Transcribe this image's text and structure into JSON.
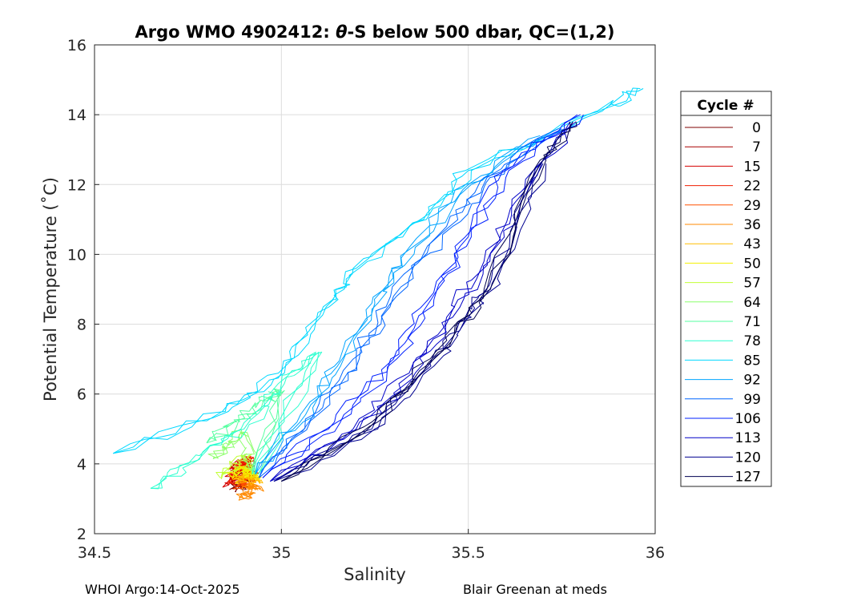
{
  "chart_data": {
    "type": "line",
    "title": "Argo WMO 4902412: θ-S below 500 dbar,  QC=(1,2)",
    "title_parts": {
      "prefix": "Argo WMO 4902412: ",
      "theta": "θ",
      "suffix": "-S below 500 dbar,  QC=(1,2)"
    },
    "xlabel": "Salinity",
    "ylabel": "Potential Temperature (˚C)",
    "xlim": [
      34.5,
      36
    ],
    "ylim": [
      2,
      16
    ],
    "xticks": [
      34.5,
      35,
      35.5,
      36
    ],
    "xtick_labels": [
      "34.5",
      "35",
      "35.5",
      "36"
    ],
    "yticks": [
      2,
      4,
      6,
      8,
      10,
      12,
      14,
      16
    ],
    "ytick_labels": [
      "2",
      "4",
      "6",
      "8",
      "10",
      "12",
      "14",
      "16"
    ],
    "grid": true,
    "legend": {
      "title": "Cycle #",
      "placement": "right",
      "entries": [
        {
          "label": "0",
          "color": "#7f0000"
        },
        {
          "label": "7",
          "color": "#a80000"
        },
        {
          "label": "15",
          "color": "#d40000"
        },
        {
          "label": "22",
          "color": "#f01e00"
        },
        {
          "label": "29",
          "color": "#ff5000"
        },
        {
          "label": "36",
          "color": "#ff8a00"
        },
        {
          "label": "43",
          "color": "#ffbd00"
        },
        {
          "label": "50",
          "color": "#f2f000"
        },
        {
          "label": "57",
          "color": "#c2ff36"
        },
        {
          "label": "64",
          "color": "#8cff6b"
        },
        {
          "label": "71",
          "color": "#56ffa0"
        },
        {
          "label": "78",
          "color": "#2effd0"
        },
        {
          "label": "85",
          "color": "#00d8ff"
        },
        {
          "label": "92",
          "color": "#00a4ff"
        },
        {
          "label": "99",
          "color": "#0066ff"
        },
        {
          "label": "106",
          "color": "#0020ff"
        },
        {
          "label": "113",
          "color": "#0000c8"
        },
        {
          "label": "120",
          "color": "#000090"
        },
        {
          "label": "127",
          "color": "#000050"
        }
      ]
    },
    "series": [
      {
        "name": "0",
        "x": [
          34.88,
          34.89,
          34.9,
          34.91,
          34.92
        ],
        "y": [
          3.3,
          3.4,
          3.5,
          3.55,
          3.6
        ]
      },
      {
        "name": "7",
        "x": [
          34.87,
          34.88,
          34.9,
          34.91,
          34.92
        ],
        "y": [
          3.5,
          3.7,
          3.9,
          4.0,
          3.7
        ]
      },
      {
        "name": "15",
        "x": [
          34.86,
          34.88,
          34.89,
          34.9,
          34.92
        ],
        "y": [
          3.4,
          3.8,
          4.0,
          4.1,
          3.6
        ]
      },
      {
        "name": "22",
        "x": [
          34.87,
          34.88,
          34.9,
          34.91,
          34.92
        ],
        "y": [
          3.45,
          3.75,
          4.05,
          4.15,
          3.65
        ]
      },
      {
        "name": "29",
        "x": [
          34.89,
          34.9,
          34.91,
          34.92
        ],
        "y": [
          3.3,
          3.5,
          3.7,
          3.5
        ]
      },
      {
        "name": "36",
        "x": [
          34.9,
          34.91,
          34.92,
          34.93
        ],
        "y": [
          3.0,
          3.2,
          3.4,
          3.3
        ]
      },
      {
        "name": "43",
        "x": [
          34.88,
          34.9,
          34.92,
          34.93
        ],
        "y": [
          3.5,
          3.7,
          3.6,
          3.5
        ]
      },
      {
        "name": "50",
        "x": [
          34.87,
          34.89,
          34.91,
          34.93
        ],
        "y": [
          3.6,
          3.9,
          3.8,
          3.6
        ]
      },
      {
        "name": "57",
        "x": [
          34.84,
          34.87,
          34.9,
          34.93
        ],
        "y": [
          3.6,
          4.0,
          4.2,
          3.7
        ]
      },
      {
        "name": "64",
        "x": [
          34.82,
          34.86,
          34.9,
          34.93
        ],
        "y": [
          4.2,
          4.6,
          4.9,
          3.7
        ]
      },
      {
        "name": "71",
        "x": [
          34.8,
          34.88,
          34.95,
          35.0,
          34.93
        ],
        "y": [
          4.6,
          5.2,
          5.8,
          6.1,
          3.7
        ]
      },
      {
        "name": "78",
        "x": [
          34.65,
          34.75,
          34.9,
          35.0,
          35.1,
          34.93
        ],
        "y": [
          3.3,
          4.0,
          5.0,
          6.3,
          7.2,
          3.7
        ]
      },
      {
        "name": "85",
        "x": [
          34.55,
          34.85,
          35.0,
          35.12,
          35.2,
          35.38,
          35.5,
          35.85,
          35.96
        ],
        "y": [
          4.3,
          5.5,
          6.6,
          8.5,
          9.6,
          11.0,
          12.4,
          14.1,
          14.75
        ]
      },
      {
        "name": "92",
        "x": [
          34.93,
          35.05,
          35.15,
          35.25,
          35.35,
          35.5,
          35.7
        ],
        "y": [
          3.7,
          5.2,
          6.8,
          8.6,
          10.2,
          12.0,
          13.4
        ]
      },
      {
        "name": "99",
        "x": [
          34.94,
          35.1,
          35.2,
          35.3,
          35.45,
          35.55,
          35.75
        ],
        "y": [
          3.6,
          5.5,
          7.0,
          8.8,
          10.8,
          12.2,
          13.6
        ]
      },
      {
        "name": "106",
        "x": [
          34.95,
          35.15,
          35.3,
          35.4,
          35.5,
          35.6,
          35.8
        ],
        "y": [
          3.6,
          5.2,
          7.0,
          8.7,
          10.5,
          12.4,
          14.0
        ]
      },
      {
        "name": "113",
        "x": [
          34.97,
          35.2,
          35.35,
          35.45,
          35.55,
          35.65,
          35.78
        ],
        "y": [
          3.5,
          5.0,
          6.6,
          8.2,
          9.8,
          11.8,
          13.8
        ]
      },
      {
        "name": "120",
        "x": [
          34.98,
          35.25,
          35.4,
          35.5,
          35.57,
          35.7
        ],
        "y": [
          3.5,
          5.0,
          6.8,
          8.2,
          9.3,
          12.6
        ]
      },
      {
        "name": "127",
        "x": [
          35.0,
          35.25,
          35.42,
          35.55,
          35.7,
          35.78
        ],
        "y": [
          3.5,
          5.2,
          7.2,
          9.0,
          12.7,
          13.8
        ]
      }
    ]
  },
  "footer": {
    "left": "WHOI Argo:14-Oct-2025",
    "right": "Blair Greenan at meds"
  }
}
